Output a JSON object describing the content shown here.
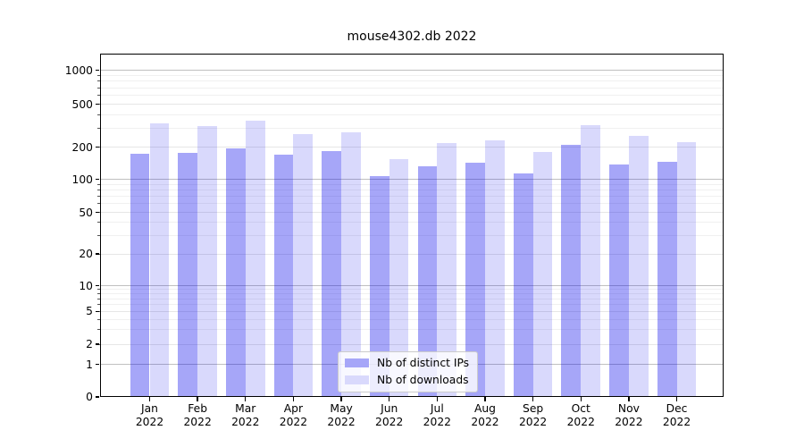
{
  "title": "mouse4302.db 2022",
  "chart_data": {
    "type": "bar",
    "title": "mouse4302.db 2022",
    "categories": [
      "Jan",
      "Feb",
      "Mar",
      "Apr",
      "May",
      "Jun",
      "Jul",
      "Aug",
      "Sep",
      "Oct",
      "Nov",
      "Dec"
    ],
    "category_year": "2022",
    "y_ticks": [
      0,
      1,
      2,
      5,
      10,
      20,
      50,
      100,
      200,
      500,
      1000
    ],
    "yscale": "symlog",
    "ylim": [
      0,
      1400
    ],
    "grid": true,
    "legend_position": "lower center",
    "series": [
      {
        "name": "Nb of distinct IPs",
        "color": "#a6a6f8",
        "base_color": "#0000eb",
        "alpha": 0.35,
        "values": [
          175,
          179,
          195,
          172,
          186,
          108,
          134,
          144,
          114,
          212,
          138,
          145
        ]
      },
      {
        "name": "Nb of downloads",
        "color": "#d9d9fc",
        "base_color": "#0000eb",
        "alpha": 0.15,
        "values": [
          333,
          315,
          352,
          264,
          277,
          154,
          218,
          232,
          180,
          320,
          255,
          222
        ]
      }
    ]
  }
}
